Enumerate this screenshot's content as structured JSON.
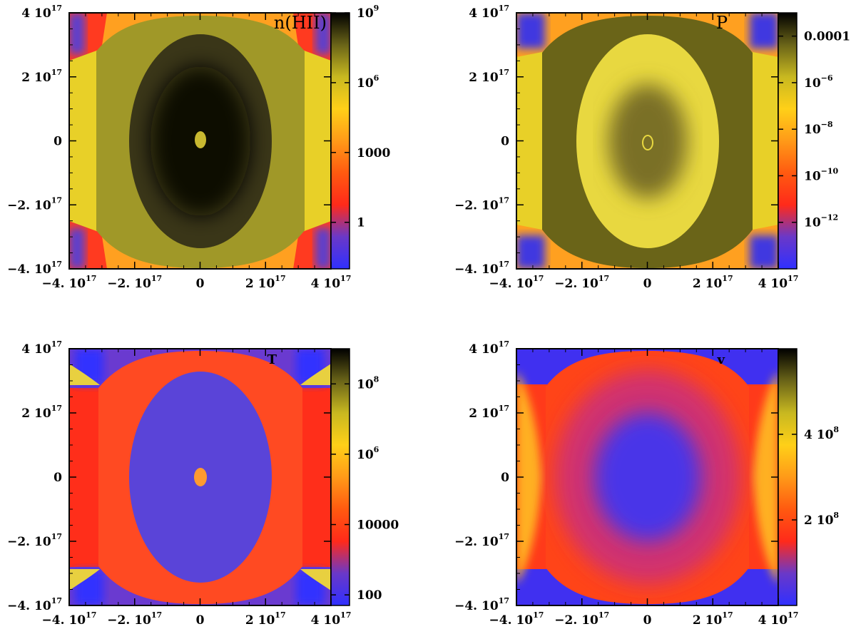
{
  "figure": {
    "colors": {
      "colormap": [
        "#3030ff",
        "#6a38c8",
        "#ff2a1a",
        "#ff5a10",
        "#ff9a18",
        "#ffd018",
        "#c8b820",
        "#6a6418",
        "#000000"
      ],
      "axes": "#000000",
      "background": "#ffffff"
    }
  },
  "chart_data": [
    {
      "type": "heatmap",
      "title": "n(HII)",
      "x_ticks": [
        {
          "base": "−4. 10",
          "exp": "17",
          "value": -4e+17
        },
        {
          "base": "−2. 10",
          "exp": "17",
          "value": -2e+17
        },
        {
          "base": "0",
          "exp": "",
          "value": 0
        },
        {
          "base": "2 10",
          "exp": "17",
          "value": 2e+17
        },
        {
          "base": "4 10",
          "exp": "17",
          "value": 4e+17
        }
      ],
      "y_ticks": [
        {
          "base": "4 10",
          "exp": "17",
          "value": 4e+17
        },
        {
          "base": "2 10",
          "exp": "17",
          "value": 2e+17
        },
        {
          "base": "0",
          "exp": "",
          "value": 0
        },
        {
          "base": "−2. 10",
          "exp": "17",
          "value": -2e+17
        },
        {
          "base": "−4. 10",
          "exp": "17",
          "value": -4e+17
        }
      ],
      "xlim": [
        -4e+17,
        4e+17
      ],
      "ylim": [
        -4e+17,
        4e+17
      ],
      "colorbar": {
        "scale": "log",
        "range": [
          0.01,
          1000000000.0
        ],
        "ticks": [
          {
            "base": "10",
            "exp": "9",
            "value": 1000000000.0
          },
          {
            "base": "10",
            "exp": "6",
            "value": 1000000.0
          },
          {
            "base": "1000",
            "exp": "",
            "value": 1000
          },
          {
            "base": "1",
            "exp": "",
            "value": 1
          }
        ]
      }
    },
    {
      "type": "heatmap",
      "title": "P",
      "x_ticks": [
        {
          "base": "−4. 10",
          "exp": "17",
          "value": -4e+17
        },
        {
          "base": "−2. 10",
          "exp": "17",
          "value": -2e+17
        },
        {
          "base": "0",
          "exp": "",
          "value": 0
        },
        {
          "base": "2 10",
          "exp": "17",
          "value": 2e+17
        },
        {
          "base": "4 10",
          "exp": "17",
          "value": 4e+17
        }
      ],
      "y_ticks": [
        {
          "base": "4 10",
          "exp": "17",
          "value": 4e+17
        },
        {
          "base": "2 10",
          "exp": "17",
          "value": 2e+17
        },
        {
          "base": "0",
          "exp": "",
          "value": 0
        },
        {
          "base": "−2. 10",
          "exp": "17",
          "value": -2e+17
        },
        {
          "base": "−4. 10",
          "exp": "17",
          "value": -4e+17
        }
      ],
      "xlim": [
        -4e+17,
        4e+17
      ],
      "ylim": [
        -4e+17,
        4e+17
      ],
      "colorbar": {
        "scale": "log",
        "range": [
          1e-14,
          0.001
        ],
        "ticks": [
          {
            "base": "0.0001",
            "exp": "",
            "value": 0.0001
          },
          {
            "base": "10",
            "exp": "−6",
            "value": 1e-06
          },
          {
            "base": "10",
            "exp": "−8",
            "value": 1e-08
          },
          {
            "base": "10",
            "exp": "−10",
            "value": 1e-10
          },
          {
            "base": "10",
            "exp": "−12",
            "value": 1e-12
          }
        ]
      }
    },
    {
      "type": "heatmap",
      "title": "T",
      "x_ticks": [
        {
          "base": "−4. 10",
          "exp": "17",
          "value": -4e+17
        },
        {
          "base": "−2. 10",
          "exp": "17",
          "value": -2e+17
        },
        {
          "base": "0",
          "exp": "",
          "value": 0
        },
        {
          "base": "2 10",
          "exp": "17",
          "value": 2e+17
        },
        {
          "base": "4 10",
          "exp": "17",
          "value": 4e+17
        }
      ],
      "y_ticks": [
        {
          "base": "4 10",
          "exp": "17",
          "value": 4e+17
        },
        {
          "base": "2 10",
          "exp": "17",
          "value": 2e+17
        },
        {
          "base": "0",
          "exp": "",
          "value": 0
        },
        {
          "base": "−2. 10",
          "exp": "17",
          "value": -2e+17
        },
        {
          "base": "−4. 10",
          "exp": "17",
          "value": -4e+17
        }
      ],
      "xlim": [
        -4e+17,
        4e+17
      ],
      "ylim": [
        -4e+17,
        4e+17
      ],
      "colorbar": {
        "scale": "log",
        "range": [
          50,
          1000000000.0
        ],
        "ticks": [
          {
            "base": "10",
            "exp": "8",
            "value": 100000000.0
          },
          {
            "base": "10",
            "exp": "6",
            "value": 1000000.0
          },
          {
            "base": "10000",
            "exp": "",
            "value": 10000
          },
          {
            "base": "100",
            "exp": "",
            "value": 100
          }
        ]
      }
    },
    {
      "type": "heatmap",
      "title": "v",
      "x_ticks": [
        {
          "base": "−4. 10",
          "exp": "17",
          "value": -4e+17
        },
        {
          "base": "−2. 10",
          "exp": "17",
          "value": -2e+17
        },
        {
          "base": "0",
          "exp": "",
          "value": 0
        },
        {
          "base": "2 10",
          "exp": "17",
          "value": 2e+17
        },
        {
          "base": "4 10",
          "exp": "17",
          "value": 4e+17
        }
      ],
      "y_ticks": [
        {
          "base": "4 10",
          "exp": "17",
          "value": 4e+17
        },
        {
          "base": "2 10",
          "exp": "17",
          "value": 2e+17
        },
        {
          "base": "0",
          "exp": "",
          "value": 0
        },
        {
          "base": "−2. 10",
          "exp": "17",
          "value": -2e+17
        },
        {
          "base": "−4. 10",
          "exp": "17",
          "value": -4e+17
        }
      ],
      "xlim": [
        -4e+17,
        4e+17
      ],
      "ylim": [
        -4e+17,
        4e+17
      ],
      "colorbar": {
        "scale": "linear",
        "range": [
          0,
          600000000.0
        ],
        "ticks": [
          {
            "base": "4 10",
            "exp": "8",
            "value": 400000000.0
          },
          {
            "base": "2 10",
            "exp": "8",
            "value": 200000000.0
          }
        ]
      }
    }
  ]
}
